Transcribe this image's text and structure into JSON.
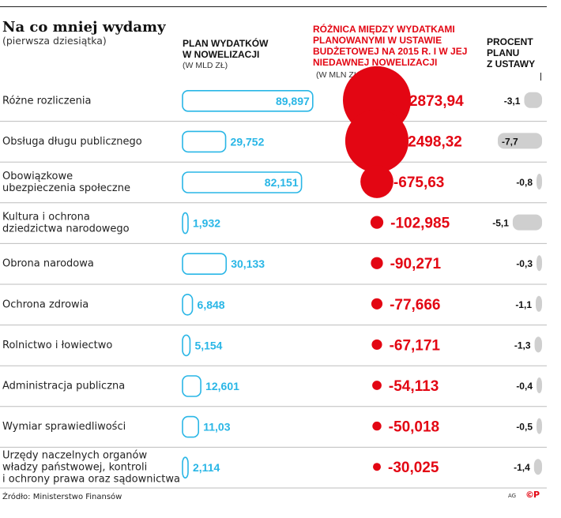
{
  "title": "Na co mniej wydamy",
  "subtitle": "(pierwsza dziesiątka)",
  "headers": {
    "plan_line1": "PLAN WYDATKÓW",
    "plan_line2": "W NOWELIZACJI",
    "plan_unit": "(W MLD ZŁ)",
    "diff_line1": "RÓŻNICA MIĘDZY WYDATKAMI",
    "diff_line2": "PLANOWANYMI W USTAWIE",
    "diff_line3": "BUDŻETOWEJ NA 2015 R. I W JEJ",
    "diff_line4": "NIEDAWNEJ NOWELIZACJI",
    "diff_unit": "(W MLN ZŁ)",
    "pct_line1": "PROCENT",
    "pct_line2": "PLANU",
    "pct_line3": "Z USTAWY"
  },
  "chart_data": {
    "type": "table",
    "title": "Na co mniej wydamy",
    "subtitle": "(pierwsza dziesiątka)",
    "rows": [
      {
        "category": [
          "Różne rozliczenia"
        ],
        "plan": 89.897,
        "plan_label": "89,897",
        "diff": -2873.94,
        "diff_label": "-2873,94",
        "pct": -3.1,
        "pct_label": "-3,1"
      },
      {
        "category": [
          "Obsługa długu publicznego"
        ],
        "plan": 29.752,
        "plan_label": "29,752",
        "diff": -2498.32,
        "diff_label": "-2498,32",
        "pct": -7.7,
        "pct_label": "-7,7"
      },
      {
        "category": [
          "Obowiązkowe",
          "ubezpieczenia społeczne"
        ],
        "plan": 82.151,
        "plan_label": "82,151",
        "diff": -675.63,
        "diff_label": "-675,63",
        "pct": -0.8,
        "pct_label": "-0,8"
      },
      {
        "category": [
          "Kultura i ochrona",
          "dziedzictwa narodowego"
        ],
        "plan": 1.932,
        "plan_label": "1,932",
        "diff": -102.985,
        "diff_label": "-102,985",
        "pct": -5.1,
        "pct_label": "-5,1"
      },
      {
        "category": [
          "Obrona narodowa"
        ],
        "plan": 30.133,
        "plan_label": "30,133",
        "diff": -90.271,
        "diff_label": "-90,271",
        "pct": -0.3,
        "pct_label": "-0,3"
      },
      {
        "category": [
          "Ochrona zdrowia"
        ],
        "plan": 6.848,
        "plan_label": "6,848",
        "diff": -77.666,
        "diff_label": "-77,666",
        "pct": -1.1,
        "pct_label": "-1,1"
      },
      {
        "category": [
          "Rolnictwo i łowiectwo"
        ],
        "plan": 5.154,
        "plan_label": "5,154",
        "diff": -67.171,
        "diff_label": "-67,171",
        "pct": -1.3,
        "pct_label": "-1,3"
      },
      {
        "category": [
          "Administracja publiczna"
        ],
        "plan": 12.601,
        "plan_label": "12,601",
        "diff": -54.113,
        "diff_label": "-54,113",
        "pct": -0.4,
        "pct_label": "-0,4"
      },
      {
        "category": [
          "Wymiar sprawiedliwości"
        ],
        "plan": 11.03,
        "plan_label": "11,03",
        "diff": -50.018,
        "diff_label": "-50,018",
        "pct": -0.5,
        "pct_label": "-0,5"
      },
      {
        "category": [
          "Urzędy naczelnych organów",
          "władzy państwowej, kontroli",
          "i ochrony prawa oraz sądownictwa"
        ],
        "plan": 2.114,
        "plan_label": "2,114",
        "diff": -30.025,
        "diff_label": "-30,025",
        "pct": -1.4,
        "pct_label": "-1,4"
      }
    ]
  },
  "colors": {
    "accent_red": "#e30613",
    "plan_cyan": "#29b6e6",
    "pct_grey": "#cfcfcf",
    "separator": "#bdbdbd"
  },
  "source": "Źródło: Ministerstwo Finansów",
  "credit": "AG",
  "logo": "©P"
}
